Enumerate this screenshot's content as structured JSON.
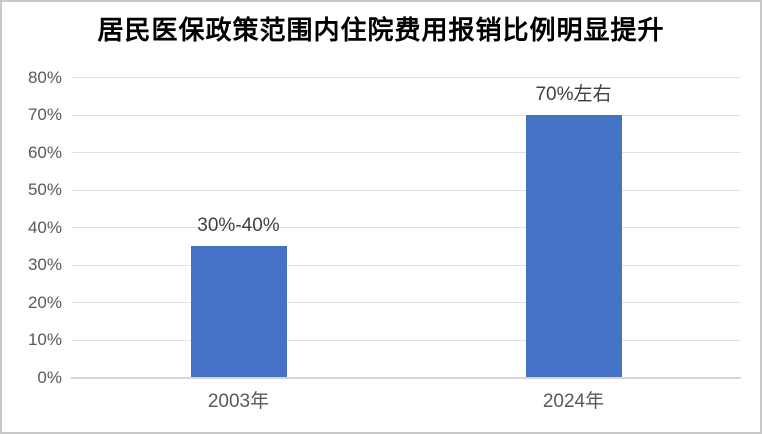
{
  "chart_data": {
    "type": "bar",
    "title": "居民医保政策范围内住院费用报销比例明显提升",
    "categories": [
      "2003年",
      "2024年"
    ],
    "values": [
      35,
      70
    ],
    "data_labels": [
      "30%-40%",
      "70%左右"
    ],
    "xlabel": "",
    "ylabel": "",
    "ylim": [
      0,
      80
    ],
    "ytick_values": [
      0,
      10,
      20,
      30,
      40,
      50,
      60,
      70,
      80
    ],
    "ytick_labels": [
      "0%",
      "10%",
      "20%",
      "30%",
      "40%",
      "50%",
      "60%",
      "70%",
      "80%"
    ],
    "grid": true,
    "legend": false,
    "colors": {
      "bar": "#4472C4",
      "gridline": "#E2E2E2",
      "axis_line": "#D6D6D6",
      "tick_text": "#595959",
      "data_label_text": "#404040",
      "title_text": "#000000",
      "frame_border": "#C9C9C9"
    }
  }
}
